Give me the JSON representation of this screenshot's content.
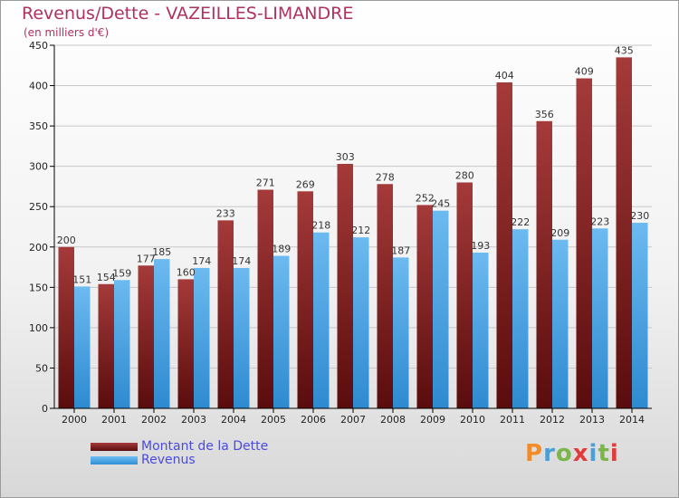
{
  "header": {
    "title": "Revenus/Dette - VAZEILLES-LIMANDRE",
    "subtitle": "(en milliers d'€)"
  },
  "legend": {
    "debt_label": "Montant de la Dette",
    "revenue_label": "Revenus"
  },
  "logo": {
    "text": "Proxiti",
    "letter_colors": [
      "#f28c28",
      "#4a9fd8",
      "#7ab648",
      "#e03c3c",
      "#4a9fd8",
      "#7ab648",
      "#e03c3c"
    ]
  },
  "colors": {
    "debt_top": "#a53a3a",
    "debt_bottom": "#5a0c0c",
    "revenue_top": "#6cbaf0",
    "revenue_bottom": "#2e8ad0",
    "title": "#b03060",
    "legend_text": "#4a4adf"
  },
  "chart_data": {
    "type": "bar",
    "title": "Revenus/Dette - VAZEILLES-LIMANDRE",
    "subtitle": "(en milliers d'€)",
    "categories": [
      "2000",
      "2001",
      "2002",
      "2003",
      "2004",
      "2005",
      "2006",
      "2007",
      "2008",
      "2009",
      "2010",
      "2011",
      "2012",
      "2013",
      "2014"
    ],
    "series": [
      {
        "name": "Montant de la Dette",
        "values": [
          200,
          154,
          177,
          160,
          233,
          271,
          269,
          303,
          278,
          252,
          280,
          404,
          356,
          409,
          435
        ]
      },
      {
        "name": "Revenus",
        "values": [
          151,
          159,
          185,
          174,
          174,
          189,
          218,
          212,
          187,
          245,
          193,
          222,
          209,
          223,
          230
        ]
      }
    ],
    "ylim": [
      0,
      450
    ],
    "yticks": [
      0,
      50,
      100,
      150,
      200,
      250,
      300,
      350,
      400,
      450
    ],
    "grid": true,
    "legend_position": "bottom-left"
  }
}
